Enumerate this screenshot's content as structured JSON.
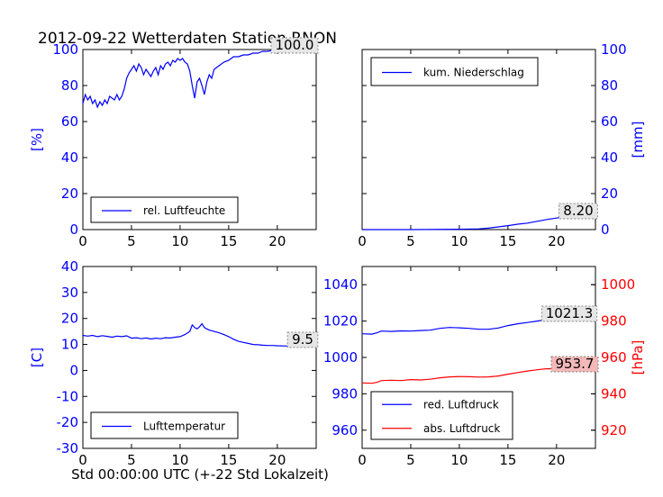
{
  "page": {
    "title": "2012-09-22 Wetterdaten Station RNON",
    "xlabel": "Std 00:00:00 UTC (+-22 Std Lokalzeit)"
  },
  "colors": {
    "blue": "#0000ff",
    "red": "#ff0000",
    "axes": "#000000",
    "annot_box_red": "#f4b8b8",
    "annot_box_gray": "#e6e6e6"
  },
  "chart_data": [
    {
      "type": "line",
      "ylabel": "[%]",
      "ylabel_color": "#0000ff",
      "xlim": [
        0,
        24
      ],
      "xticks": [
        0,
        5,
        10,
        15,
        20
      ],
      "ylim": [
        0,
        100
      ],
      "yticks": [
        0,
        20,
        40,
        60,
        80,
        100
      ],
      "grid": false,
      "legend": "lower-left",
      "series": [
        {
          "name": "rel. Luftfeuchte",
          "color": "#0000ff",
          "x": [
            0,
            0.25,
            0.5,
            0.75,
            1.0,
            1.25,
            1.5,
            1.75,
            2.0,
            2.25,
            2.5,
            2.75,
            3.0,
            3.25,
            3.5,
            3.75,
            4.0,
            4.25,
            4.5,
            4.75,
            5.0,
            5.25,
            5.5,
            5.75,
            6.0,
            6.25,
            6.5,
            6.75,
            7.0,
            7.25,
            7.5,
            7.75,
            8.0,
            8.25,
            8.5,
            8.75,
            9.0,
            9.25,
            9.5,
            9.75,
            10.0,
            10.25,
            10.5,
            10.75,
            11.0,
            11.25,
            11.5,
            11.75,
            12.0,
            12.25,
            12.5,
            12.75,
            13.0,
            13.25,
            13.5,
            13.75,
            14.0,
            14.5,
            15.0,
            15.5,
            16.0,
            16.5,
            17.0,
            17.5,
            18.0,
            18.5,
            19.0,
            19.5,
            20.0,
            20.5,
            21.0,
            22.0,
            23.0,
            24.0
          ],
          "values": [
            70,
            75,
            72,
            74,
            70,
            72,
            68,
            71,
            69,
            72,
            70,
            74,
            73,
            72,
            75,
            72,
            74,
            78,
            84,
            87,
            89,
            91,
            88,
            92,
            90,
            86,
            89,
            87,
            85,
            88,
            90,
            86,
            91,
            89,
            92,
            93,
            91,
            94,
            93,
            95,
            94,
            95,
            93,
            92,
            88,
            80,
            73,
            82,
            84,
            80,
            75,
            82,
            86,
            84,
            89,
            90,
            91,
            93,
            94,
            96,
            96,
            97,
            97,
            98,
            98,
            99,
            99,
            99.5,
            100,
            100,
            100,
            100,
            100,
            100
          ]
        }
      ],
      "annotations": [
        {
          "text": "100.0"
        }
      ]
    },
    {
      "type": "line",
      "ylabel": "[mm]",
      "ylabel_color": "#0000ff",
      "xlim": [
        0,
        24
      ],
      "xticks": [
        0,
        5,
        10,
        15,
        20
      ],
      "ylim": [
        0,
        100
      ],
      "yticks": [
        0,
        20,
        40,
        60,
        80,
        100
      ],
      "yaxis_side": "right",
      "grid": false,
      "legend": "upper-left",
      "series": [
        {
          "name": "kum. Niederschlag",
          "color": "#0000ff",
          "x": [
            0,
            5,
            10,
            12,
            13,
            14,
            15,
            16,
            17,
            18,
            19,
            20,
            21,
            22,
            23,
            24
          ],
          "values": [
            0,
            0,
            0.2,
            0.4,
            0.8,
            1.5,
            2.2,
            3.0,
            3.6,
            4.6,
            5.6,
            6.4,
            7.0,
            7.6,
            8.0,
            8.2
          ]
        }
      ],
      "annotations": [
        {
          "text": "8.20"
        }
      ]
    },
    {
      "type": "line",
      "ylabel": "[C]",
      "ylabel_color": "#0000ff",
      "xlim": [
        0,
        24
      ],
      "xticks": [
        0,
        5,
        10,
        15,
        20
      ],
      "ylim": [
        -30,
        40
      ],
      "yticks": [
        -30,
        -20,
        -10,
        0,
        10,
        20,
        30,
        40
      ],
      "grid": false,
      "legend": "lower-left",
      "series": [
        {
          "name": "Lufttemperatur",
          "color": "#0000ff",
          "x": [
            0,
            0.5,
            1,
            1.5,
            2,
            2.5,
            3,
            3.5,
            4,
            4.5,
            5,
            5.5,
            6,
            6.5,
            7,
            7.5,
            8,
            8.5,
            9,
            9.5,
            10,
            10.5,
            11,
            11.25,
            11.5,
            11.75,
            12,
            12.25,
            12.5,
            12.75,
            13,
            13.5,
            14,
            14.5,
            15,
            15.5,
            16,
            16.5,
            17,
            17.5,
            18,
            18.5,
            19,
            19.5,
            20,
            21,
            22,
            23,
            24
          ],
          "values": [
            13.5,
            13.2,
            13.5,
            13.0,
            13.4,
            13.1,
            12.8,
            13.2,
            13.0,
            13.3,
            12.4,
            12.6,
            12.2,
            12.5,
            12.1,
            12.4,
            12.2,
            12.6,
            12.5,
            12.8,
            13.0,
            13.8,
            15.0,
            17.5,
            16.5,
            16.0,
            16.8,
            18.0,
            16.5,
            16.0,
            15.5,
            15.0,
            14.5,
            13.8,
            13.0,
            12.0,
            11.2,
            10.8,
            10.4,
            10.0,
            9.9,
            9.7,
            9.6,
            9.6,
            9.5,
            9.4,
            9.5,
            9.4,
            9.5
          ]
        }
      ],
      "annotations": [
        {
          "text": "9.5"
        }
      ]
    },
    {
      "type": "line",
      "ylabel": "[hPa]",
      "ylabel_color": "#ff0000",
      "xlim": [
        0,
        24
      ],
      "xticks": [
        0,
        5,
        10,
        15,
        20
      ],
      "ylim": [
        950,
        1050
      ],
      "yticks": [
        960,
        980,
        1000,
        1020,
        1040
      ],
      "ylim_right": [
        910,
        1010
      ],
      "yticks_right": [
        920,
        940,
        960,
        980,
        1000
      ],
      "left_tick_color": "#0000ff",
      "right_tick_color": "#ff0000",
      "grid": false,
      "legend": "lower-left",
      "series": [
        {
          "name": "red. Luftdruck",
          "color": "#0000ff",
          "axis": "left",
          "x": [
            0,
            1,
            1.5,
            2,
            3,
            4,
            5,
            6,
            7,
            8,
            9,
            10,
            11,
            12,
            13,
            14,
            15,
            16,
            17,
            18,
            19,
            20,
            21,
            22,
            23,
            24
          ],
          "values": [
            1013.0,
            1012.8,
            1013.5,
            1014.5,
            1014.3,
            1014.6,
            1014.5,
            1014.8,
            1015.0,
            1016.0,
            1016.5,
            1016.3,
            1016.0,
            1015.5,
            1015.5,
            1016.2,
            1017.5,
            1018.5,
            1019.2,
            1020.0,
            1020.8,
            1021.2,
            1021.3,
            1021.5,
            1021.2,
            1021.3
          ]
        },
        {
          "name": "abs. Luftdruck",
          "color": "#ff0000",
          "axis": "right",
          "x": [
            0,
            1,
            1.5,
            2,
            3,
            4,
            5,
            6,
            7,
            8,
            9,
            10,
            11,
            12,
            13,
            14,
            15,
            16,
            17,
            18,
            19,
            20,
            21,
            22,
            23,
            24
          ],
          "values": [
            946.0,
            945.8,
            946.3,
            947.3,
            947.5,
            947.3,
            947.8,
            947.6,
            948.0,
            948.8,
            949.3,
            949.5,
            949.4,
            949.2,
            949.3,
            949.8,
            950.8,
            951.7,
            952.5,
            953.2,
            953.8,
            953.6,
            953.8,
            953.7,
            953.6,
            953.7
          ]
        }
      ],
      "annotations": [
        {
          "text": "1021.3"
        },
        {
          "text": "953.7"
        }
      ]
    }
  ]
}
